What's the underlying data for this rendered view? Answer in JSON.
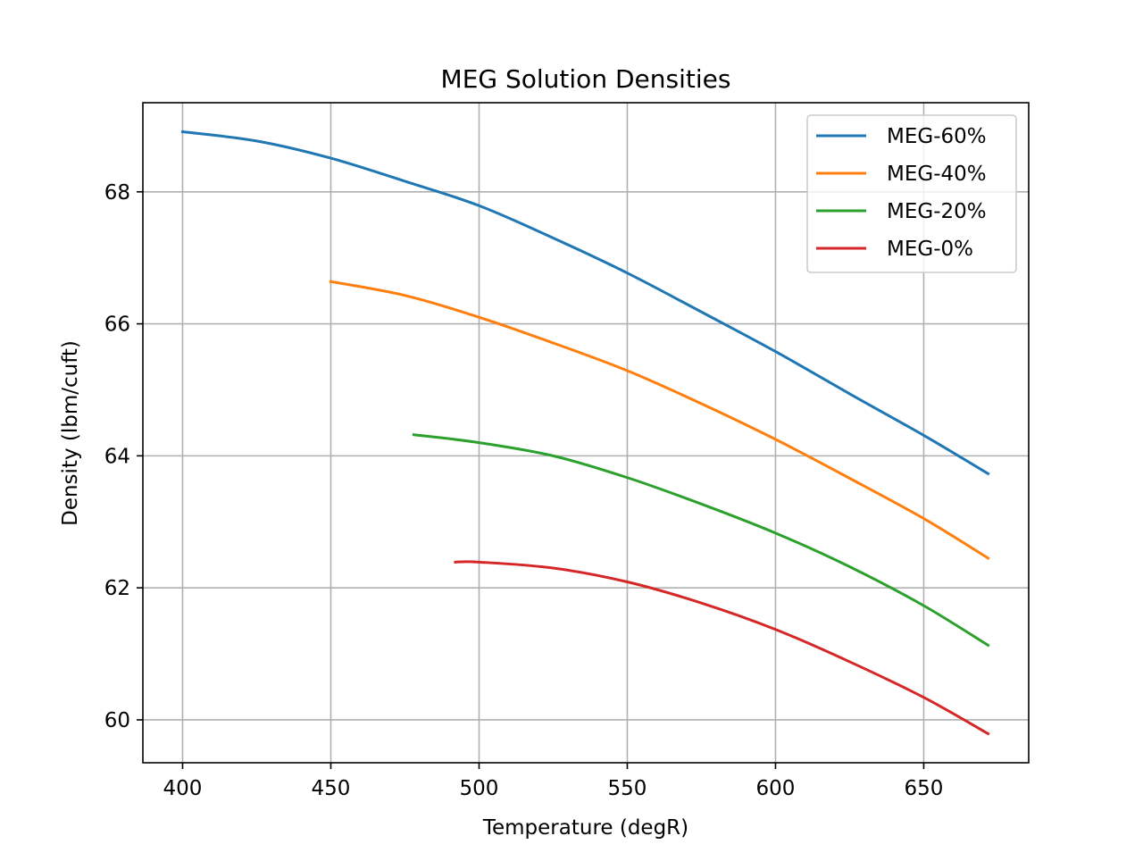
{
  "chart_data": {
    "type": "line",
    "title": "MEG Solution Densities",
    "xlabel": "Temperature (degR)",
    "ylabel": "Density (lbm/cuft)",
    "xlim": [
      386.6,
      685.4
    ],
    "ylim": [
      59.35,
      69.35
    ],
    "xticks": [
      400,
      450,
      500,
      550,
      600,
      650
    ],
    "yticks": [
      60,
      62,
      64,
      66,
      68
    ],
    "grid": true,
    "legend_position": "top-right",
    "series": [
      {
        "name": "MEG-60%",
        "color": "#1f77b4",
        "x": [
          400,
          425,
          450,
          475,
          500,
          525,
          550,
          575,
          600,
          625,
          650,
          671.7
        ],
        "y": [
          68.91,
          68.77,
          68.51,
          68.16,
          67.79,
          67.3,
          66.77,
          66.18,
          65.58,
          64.94,
          64.31,
          63.73
        ]
      },
      {
        "name": "MEG-40%",
        "color": "#ff7f0e",
        "x": [
          450,
          475,
          500,
          525,
          550,
          575,
          600,
          625,
          650,
          671.7
        ],
        "y": [
          66.64,
          66.43,
          66.1,
          65.71,
          65.29,
          64.79,
          64.25,
          63.66,
          63.05,
          62.45
        ]
      },
      {
        "name": "MEG-20%",
        "color": "#2ca02c",
        "x": [
          478,
          500,
          525,
          550,
          575,
          600,
          625,
          650,
          671.7
        ],
        "y": [
          64.32,
          64.2,
          64.0,
          63.67,
          63.27,
          62.83,
          62.32,
          61.73,
          61.13
        ]
      },
      {
        "name": "MEG-0%",
        "color": "#d62728",
        "x": [
          492,
          500,
          525,
          550,
          575,
          600,
          625,
          650,
          671.7
        ],
        "y": [
          62.39,
          62.39,
          62.3,
          62.09,
          61.77,
          61.37,
          60.88,
          60.34,
          59.79
        ]
      }
    ]
  }
}
